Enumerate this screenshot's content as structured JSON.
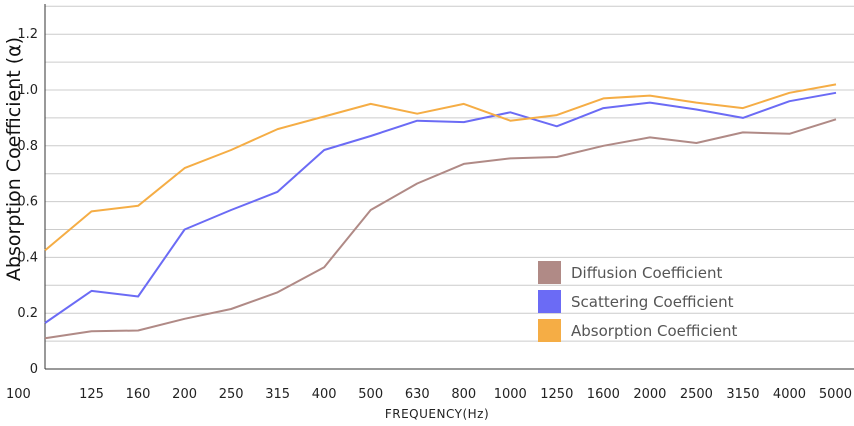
{
  "chart_data": {
    "type": "line",
    "title": "",
    "xlabel": "FREQUENCY(Hz)",
    "ylabel": "Absorption Coefficient (α)",
    "categories": [
      "100",
      "125",
      "160",
      "200",
      "250",
      "315",
      "400",
      "500",
      "630",
      "800",
      "1000",
      "1250",
      "1600",
      "2000",
      "2500",
      "3150",
      "4000",
      "5000"
    ],
    "y_ticks": [
      {
        "value": 0,
        "label": "0"
      },
      {
        "value": 0.2,
        "label": "0.2"
      },
      {
        "value": 0.4,
        "label": "0.4"
      },
      {
        "value": 0.6,
        "label": "0.6"
      },
      {
        "value": 0.8,
        "label": "0.8"
      },
      {
        "value": 1.0,
        "label": "1.0"
      },
      {
        "value": 1.2,
        "label": "1.2"
      }
    ],
    "ylim": [
      0,
      1.33
    ],
    "grid": true,
    "legend_position": "bottom-right",
    "series": [
      {
        "name": "Diffusion Coefficient",
        "color": "#b08a86",
        "values": [
          0.11,
          0.135,
          0.138,
          0.18,
          0.215,
          0.275,
          0.365,
          0.57,
          0.665,
          0.735,
          0.755,
          0.76,
          0.8,
          0.83,
          0.81,
          0.848,
          0.843,
          0.895
        ]
      },
      {
        "name": "Scattering Coefficient",
        "color": "#6b6bf5",
        "values": [
          0.165,
          0.28,
          0.26,
          0.5,
          0.57,
          0.635,
          0.785,
          0.835,
          0.89,
          0.885,
          0.92,
          0.87,
          0.935,
          0.955,
          0.93,
          0.9,
          0.96,
          0.99
        ]
      },
      {
        "name": "Absorption Coefficient",
        "color": "#f5ad45",
        "values": [
          0.425,
          0.565,
          0.585,
          0.72,
          0.785,
          0.86,
          0.905,
          0.95,
          0.915,
          0.95,
          0.89,
          0.91,
          0.97,
          0.98,
          0.955,
          0.935,
          0.99,
          1.02
        ]
      }
    ]
  }
}
